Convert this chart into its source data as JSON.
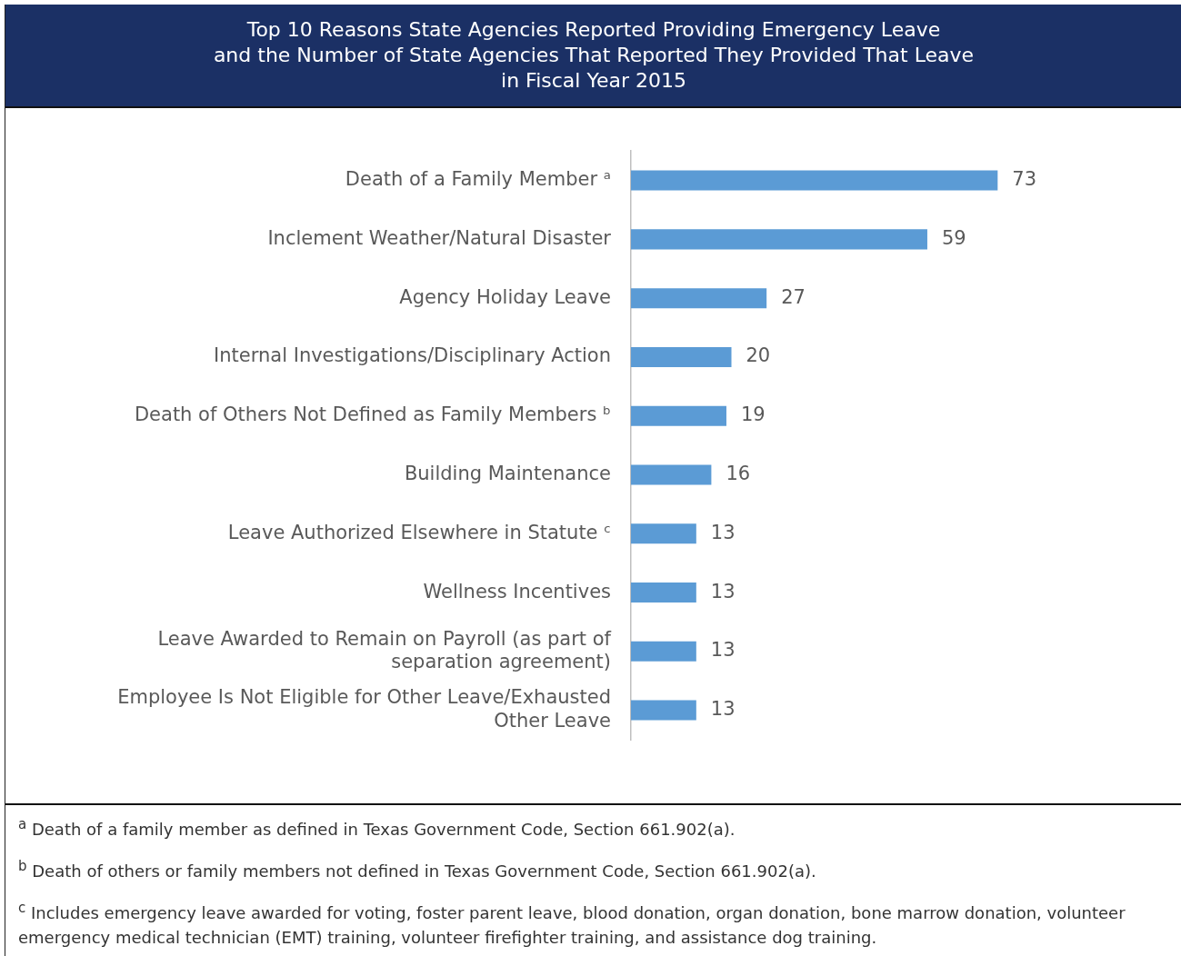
{
  "chart_data": {
    "type": "bar",
    "orientation": "horizontal",
    "title": "Top 10 Reasons State Agencies Reported Providing Emergency Leave\nand the Number of State Agencies That Reported They Provided That Leave\nin Fiscal Year 2015",
    "categories": [
      "Death of a Family Member ᵃ",
      "Inclement Weather/Natural Disaster",
      "Agency Holiday Leave",
      "Internal Investigations/Disciplinary Action",
      "Death of Others Not Defined as Family Members ᵇ",
      "Building Maintenance",
      "Leave Authorized Elsewhere in Statute ᶜ",
      "Wellness Incentives",
      "Leave Awarded to Remain on Payroll (as part of separation agreement)",
      "Employee Is Not Eligible for Other Leave/Exhausted Other Leave"
    ],
    "values": [
      73,
      59,
      27,
      20,
      19,
      16,
      13,
      13,
      13,
      13
    ],
    "color": "#5b9bd5",
    "data_labels": true,
    "tick_labels": "y",
    "annotations": [
      "$^{a}$ Death of a family member as defined in Texas Government Code, Section 661.902(a).",
      "$^{b}$ Death of others or family members not defined in Texas Government Code, Section 661.902(a).",
      "$^{c}$ Includes emergency leave awarded for voting, foster parent leave, blood donation, organ donation, bone marrow donation, volunteer emergency medical technician (EMT) training, volunteer firefighter training, and assistance dog training."
    ]
  }
}
